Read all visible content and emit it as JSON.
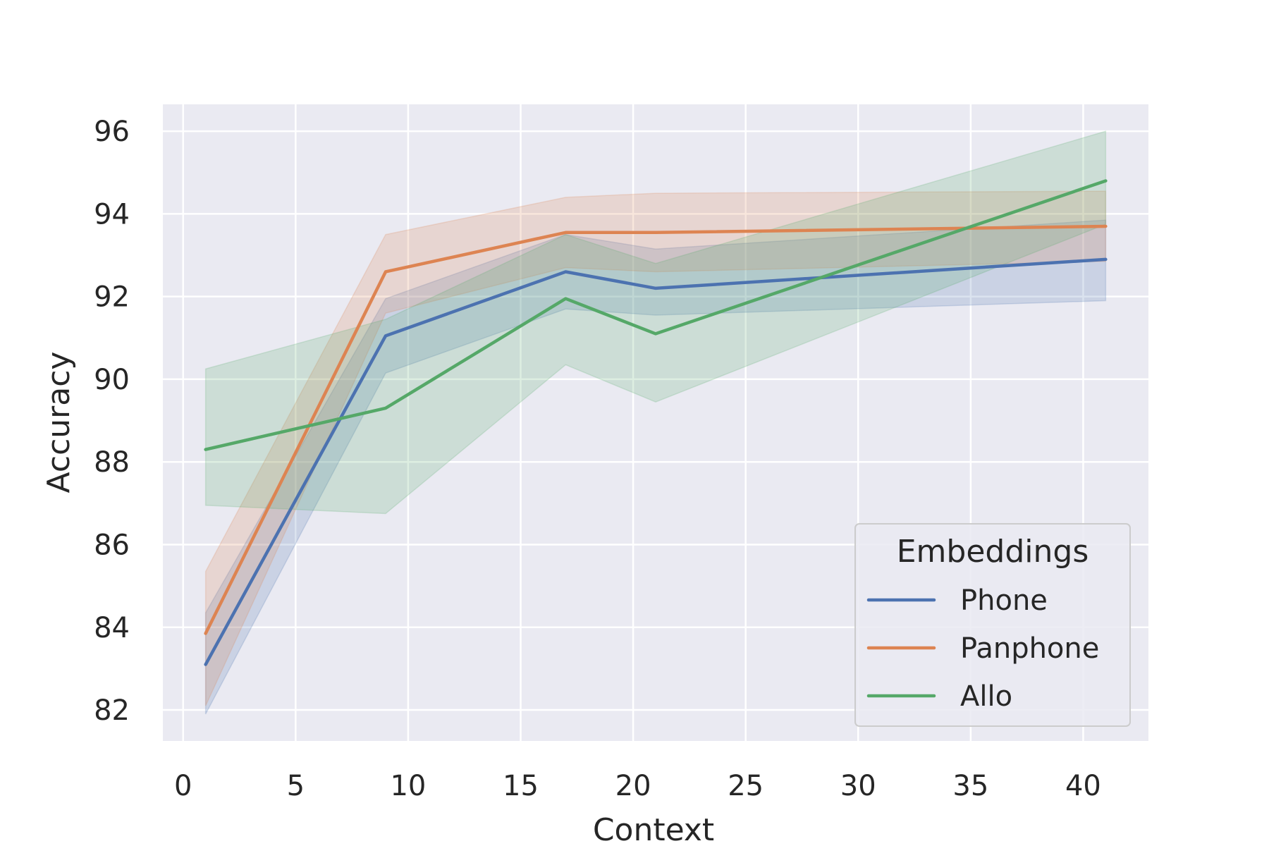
{
  "chart_data": {
    "type": "line",
    "title": "",
    "xlabel": "Context",
    "ylabel": "Accuracy",
    "xlim": [
      -0.9,
      42.9
    ],
    "ylim": [
      81.25,
      96.65
    ],
    "xticks": [
      0,
      5,
      10,
      15,
      20,
      25,
      30,
      35,
      40
    ],
    "yticks": [
      82,
      84,
      86,
      88,
      90,
      92,
      94,
      96
    ],
    "grid": true,
    "x": [
      1,
      9,
      17,
      21,
      41
    ],
    "series": [
      {
        "name": "Phone",
        "color": "#4c72b0",
        "values": [
          83.1,
          91.05,
          92.6,
          92.2,
          92.9
        ],
        "ci_lower": [
          81.9,
          90.15,
          91.7,
          91.55,
          91.9
        ],
        "ci_upper": [
          84.35,
          91.95,
          93.5,
          93.15,
          93.85
        ]
      },
      {
        "name": "Panphone",
        "color": "#dd8452",
        "values": [
          83.85,
          92.6,
          93.55,
          93.55,
          93.7
        ],
        "ci_lower": [
          82.1,
          91.6,
          92.7,
          92.6,
          92.85
        ],
        "ci_upper": [
          85.35,
          93.5,
          94.4,
          94.5,
          94.55
        ]
      },
      {
        "name": "Allo",
        "color": "#55a868",
        "values": [
          88.3,
          89.3,
          91.95,
          91.1,
          94.8
        ],
        "ci_lower": [
          86.95,
          86.75,
          90.35,
          89.45,
          93.75
        ],
        "ci_upper": [
          90.25,
          91.45,
          93.5,
          92.8,
          96.0
        ]
      }
    ],
    "legend": {
      "title": "Embeddings",
      "position": "lower-right"
    }
  }
}
